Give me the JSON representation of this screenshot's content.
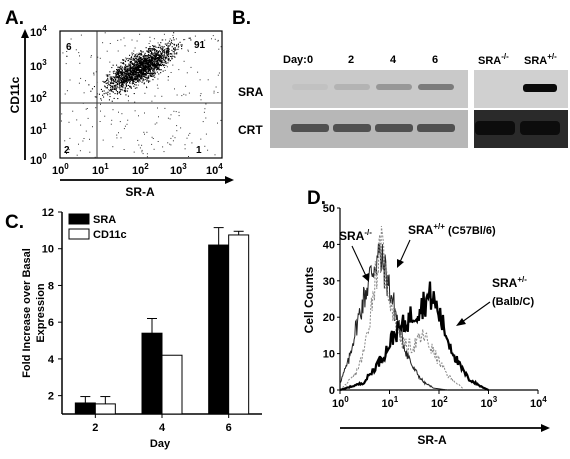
{
  "panels": {
    "A": {
      "letter": "A.",
      "xlabel": "SR-A",
      "ylabel": "CD11c",
      "quadrants": {
        "ul": "6",
        "ur": "91",
        "ll": "2",
        "lr": "1"
      },
      "ticks": [
        "10",
        "10",
        "10",
        "10",
        "10"
      ],
      "tick_exp": [
        "0",
        "1",
        "2",
        "3",
        "4"
      ]
    },
    "B": {
      "letter": "B.",
      "day_label": "Day:",
      "days": [
        "0",
        "2",
        "4",
        "6"
      ],
      "row_labels": [
        "SRA",
        "CRT"
      ],
      "controls": [
        {
          "base": "SRA",
          "sup": "-/-"
        },
        {
          "base": "SRA",
          "sup": "+/-"
        }
      ],
      "sra_intensity": [
        0.05,
        0.15,
        0.35,
        0.55
      ],
      "control_sra_intensity": [
        0.0,
        1.0
      ]
    },
    "C": {
      "letter": "C.",
      "xlabel": "Day",
      "ylabel_line1": "Fold Increase over Basal",
      "ylabel_line2": "Expression"
    },
    "D": {
      "letter": "D.",
      "xlabel": "SR-A",
      "ylabel": "Cell  Counts",
      "annotations": [
        {
          "base": "SRA",
          "sup": "-/-",
          "rest": ""
        },
        {
          "base": "SRA",
          "sup": "+/+",
          "rest": " (C57Bl/6)"
        },
        {
          "base": "SRA",
          "sup": "+/-",
          "rest": ""
        },
        {
          "base": "(Balb/C)",
          "sup": "",
          "rest": ""
        }
      ],
      "yticks": [
        "50",
        "40",
        "30",
        "20",
        "10",
        "0"
      ],
      "xticks": [
        "10",
        "10",
        "10",
        "10",
        "10"
      ],
      "xtick_exp": [
        "0",
        "1",
        "2",
        "3",
        "4"
      ]
    }
  },
  "chart_data": [
    {
      "type": "bar",
      "panel": "C",
      "categories": [
        "2",
        "4",
        "6"
      ],
      "series": [
        {
          "name": "SRA",
          "values": [
            1.6,
            5.4,
            10.2
          ],
          "errors": [
            0.35,
            0.8,
            0.95
          ],
          "color": "#000000"
        },
        {
          "name": "CD11c",
          "values": [
            1.55,
            4.2,
            10.75
          ],
          "errors": [
            0.4,
            0,
            0.2
          ],
          "color": "#ffffff"
        }
      ],
      "xlabel": "Day",
      "ylabel": "Fold Increase over Basal Expression",
      "ylim": [
        1,
        12
      ],
      "yticks": [
        2,
        4,
        6,
        8,
        10,
        12
      ],
      "legend": "top-left"
    },
    {
      "type": "line",
      "panel": "D",
      "xscale": "log",
      "xlim": [
        1,
        10000
      ],
      "ylim": [
        0,
        50
      ],
      "xlabel": "SR-A",
      "ylabel": "Cell Counts",
      "series": [
        {
          "label_index": 0,
          "style": "thin",
          "points": [
            [
              1,
              2
            ],
            [
              1.5,
              8
            ],
            [
              2,
              16
            ],
            [
              3,
              25
            ],
            [
              4,
              31
            ],
            [
              5,
              35
            ],
            [
              6,
              37
            ],
            [
              8,
              33
            ],
            [
              10,
              28
            ],
            [
              14,
              20
            ],
            [
              20,
              12
            ],
            [
              30,
              6
            ],
            [
              50,
              2
            ],
            [
              80,
              0.5
            ],
            [
              150,
              0
            ]
          ]
        },
        {
          "label_index": 1,
          "style": "dotted",
          "points": [
            [
              1,
              0
            ],
            [
              2,
              4
            ],
            [
              3,
              10
            ],
            [
              4,
              20
            ],
            [
              5,
              30
            ],
            [
              6,
              36
            ],
            [
              7,
              39
            ],
            [
              8,
              33
            ],
            [
              10,
              26
            ],
            [
              14,
              18
            ],
            [
              20,
              12
            ],
            [
              30,
              12
            ],
            [
              50,
              15
            ],
            [
              80,
              10
            ],
            [
              150,
              4
            ],
            [
              300,
              0.5
            ]
          ]
        },
        {
          "label_index": 2,
          "style": "bold",
          "points": [
            [
              1,
              0
            ],
            [
              3,
              2
            ],
            [
              5,
              6
            ],
            [
              8,
              10
            ],
            [
              12,
              15
            ],
            [
              20,
              18
            ],
            [
              30,
              21
            ],
            [
              50,
              24
            ],
            [
              70,
              26
            ],
            [
              100,
              21
            ],
            [
              150,
              14
            ],
            [
              250,
              7
            ],
            [
              400,
              3
            ],
            [
              700,
              1
            ],
            [
              1000,
              0
            ]
          ]
        }
      ]
    }
  ]
}
